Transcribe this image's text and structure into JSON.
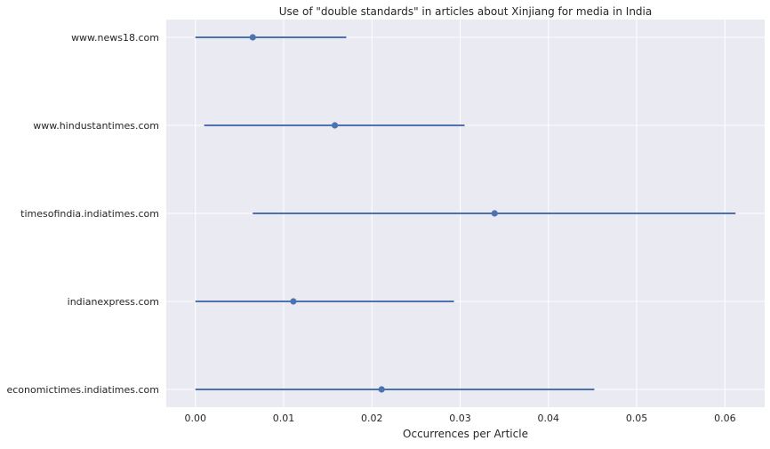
{
  "chart_data": {
    "type": "scatter",
    "title": "Use of \"double standards\" in articles about Xinjiang for media in India",
    "xlabel": "Occurrences per Article",
    "ylabel": "",
    "xlim": [
      -0.0033,
      0.0645
    ],
    "x_ticks": [
      0.0,
      0.01,
      0.02,
      0.03,
      0.04,
      0.05,
      0.06
    ],
    "x_tick_labels": [
      "0.00",
      "0.01",
      "0.02",
      "0.03",
      "0.04",
      "0.05",
      "0.06"
    ],
    "categories": [
      "www.news18.com",
      "www.hindustantimes.com",
      "timesofindia.indiatimes.com",
      "indianexpress.com",
      "economictimes.indiatimes.com"
    ],
    "values": [
      0.0065,
      0.0158,
      0.0339,
      0.0111,
      0.0211
    ],
    "lower": [
      0.0,
      0.001,
      0.0065,
      0.0,
      0.0
    ],
    "upper": [
      0.0171,
      0.0305,
      0.0612,
      0.0293,
      0.0452
    ],
    "grid": true,
    "legend": "none",
    "colors": {
      "background": "#eaeaf2",
      "grid": "#ffffff",
      "series": "#4c72b0"
    }
  }
}
